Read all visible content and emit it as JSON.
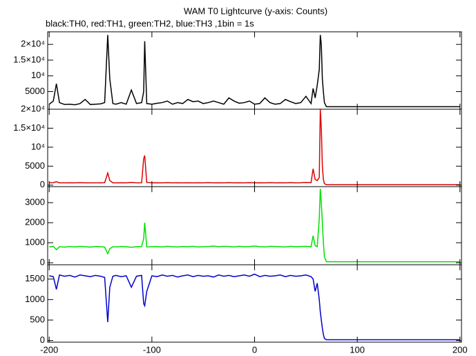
{
  "chart_data": [
    {
      "type": "line",
      "title": "WAM T0 Lightcurve (y-axis: Counts)",
      "subtitle": "black:TH0, red:TH1, green:TH2, blue:TH3 ,1bin = 1s",
      "x": [
        -200,
        -196,
        -193,
        -190,
        -185,
        -180,
        -175,
        -170,
        -165,
        -160,
        -155,
        -150,
        -146,
        -143,
        -141,
        -138,
        -135,
        -130,
        -125,
        -120,
        -115,
        -110,
        -108,
        -107,
        -105,
        -100,
        -95,
        -90,
        -85,
        -80,
        -75,
        -70,
        -65,
        -60,
        -55,
        -50,
        -45,
        -40,
        -35,
        -30,
        -25,
        -20,
        -15,
        -10,
        -5,
        0,
        5,
        10,
        15,
        20,
        25,
        30,
        35,
        40,
        45,
        50,
        55,
        57,
        59,
        61,
        63,
        64,
        65,
        66,
        67,
        68,
        70,
        75,
        80,
        90,
        100,
        110,
        120,
        130,
        140,
        150,
        160,
        170,
        180,
        190,
        200
      ],
      "series": [
        {
          "color": "#000000",
          "values": [
            1000,
            2000,
            7500,
            1500,
            900,
            1000,
            800,
            1200,
            2500,
            900,
            1000,
            1100,
            1500,
            23000,
            9000,
            1200,
            1000,
            1500,
            1000,
            5500,
            1200,
            1500,
            5000,
            21000,
            1200,
            1000,
            1300,
            1500,
            2000,
            1000,
            1500,
            1200,
            2500,
            1800,
            2000,
            1200,
            1500,
            2000,
            1500,
            1000,
            3000,
            2000,
            1300,
            1500,
            2000,
            1000,
            1200,
            3000,
            1500,
            1000,
            1200,
            2500,
            1800,
            1200,
            1500,
            3500,
            1200,
            6000,
            3000,
            7000,
            12000,
            23000,
            20000,
            9000,
            5000,
            1500,
            200,
            200,
            200,
            200,
            200,
            200,
            200,
            200,
            200,
            200,
            200,
            200,
            200,
            200,
            200
          ]
        }
      ],
      "xlim": [
        -201.5,
        201.5
      ],
      "ylim": [
        -600,
        24000
      ],
      "yticks": [
        5000,
        {
          "value": 10000,
          "label": "10⁴"
        },
        {
          "value": 15000,
          "label": "1.5×10⁴"
        },
        {
          "value": 20000,
          "label": "2×10⁴"
        }
      ]
    },
    {
      "type": "line",
      "x": [
        -200,
        -196,
        -193,
        -190,
        -185,
        -180,
        -175,
        -170,
        -165,
        -160,
        -155,
        -150,
        -146,
        -143,
        -141,
        -138,
        -135,
        -130,
        -125,
        -120,
        -115,
        -110,
        -108,
        -107,
        -105,
        -100,
        -95,
        -90,
        -85,
        -80,
        -75,
        -70,
        -65,
        -60,
        -55,
        -50,
        -45,
        -40,
        -35,
        -30,
        -25,
        -20,
        -15,
        -10,
        -5,
        0,
        5,
        10,
        15,
        20,
        25,
        30,
        35,
        40,
        45,
        50,
        55,
        57,
        59,
        61,
        63,
        64,
        65,
        66,
        67,
        68,
        70,
        75,
        80,
        90,
        100,
        110,
        120,
        130,
        140,
        150,
        160,
        170,
        180,
        190,
        200
      ],
      "series": [
        {
          "color": "#dd0000",
          "values": [
            600,
            650,
            900,
            600,
            600,
            620,
            600,
            640,
            600,
            600,
            610,
            600,
            650,
            3200,
            1200,
            600,
            600,
            620,
            600,
            700,
            600,
            620,
            7000,
            7800,
            700,
            600,
            620,
            600,
            640,
            600,
            620,
            600,
            630,
            600,
            620,
            600,
            650,
            600,
            620,
            600,
            640,
            600,
            620,
            600,
            650,
            600,
            620,
            600,
            640,
            600,
            620,
            600,
            650,
            600,
            620,
            700,
            650,
            4300,
            1500,
            1200,
            2000,
            20000,
            15000,
            5000,
            1500,
            400,
            100,
            100,
            100,
            100,
            100,
            100,
            100,
            100,
            100,
            100,
            100,
            100,
            100,
            100,
            100
          ]
        }
      ],
      "xlim": [
        -201.5,
        201.5
      ],
      "ylim": [
        -400,
        20000
      ],
      "yticks": [
        0,
        5000,
        {
          "value": 10000,
          "label": "10⁴"
        },
        {
          "value": 15000,
          "label": "1.5×10⁴"
        },
        {
          "value": 20000,
          "label": "2×10⁴"
        }
      ]
    },
    {
      "type": "line",
      "x": [
        -200,
        -196,
        -193,
        -190,
        -185,
        -180,
        -175,
        -170,
        -165,
        -160,
        -155,
        -150,
        -146,
        -143,
        -141,
        -138,
        -135,
        -130,
        -125,
        -120,
        -115,
        -110,
        -108,
        -107,
        -105,
        -100,
        -95,
        -90,
        -85,
        -80,
        -75,
        -70,
        -65,
        -60,
        -55,
        -50,
        -45,
        -40,
        -35,
        -30,
        -25,
        -20,
        -15,
        -10,
        -5,
        0,
        5,
        10,
        15,
        20,
        25,
        30,
        35,
        40,
        45,
        50,
        55,
        57,
        59,
        61,
        63,
        64,
        65,
        66,
        67,
        68,
        70,
        75,
        80,
        90,
        100,
        110,
        120,
        130,
        140,
        150,
        160,
        170,
        180,
        190,
        200
      ],
      "series": [
        {
          "color": "#00e000",
          "values": [
            790,
            820,
            650,
            800,
            780,
            810,
            790,
            820,
            800,
            780,
            810,
            800,
            780,
            450,
            700,
            800,
            790,
            810,
            800,
            770,
            800,
            810,
            1200,
            2000,
            790,
            800,
            810,
            790,
            820,
            800,
            790,
            810,
            800,
            820,
            790,
            800,
            810,
            830,
            800,
            820,
            810,
            790,
            820,
            800,
            810,
            830,
            800,
            790,
            820,
            810,
            800,
            790,
            820,
            800,
            810,
            820,
            800,
            1350,
            850,
            800,
            2200,
            3700,
            3000,
            2000,
            1000,
            300,
            50,
            50,
            50,
            50,
            50,
            50,
            50,
            50,
            50,
            50,
            50,
            50,
            50,
            50,
            50
          ]
        }
      ],
      "xlim": [
        -201.5,
        201.5
      ],
      "ylim": [
        -100,
        3800
      ],
      "yticks": [
        0,
        1000,
        2000,
        3000
      ]
    },
    {
      "type": "line",
      "x": [
        -200,
        -196,
        -193,
        -190,
        -185,
        -180,
        -175,
        -170,
        -165,
        -160,
        -155,
        -150,
        -146,
        -143,
        -141,
        -138,
        -135,
        -130,
        -125,
        -120,
        -115,
        -110,
        -108,
        -107,
        -105,
        -100,
        -95,
        -90,
        -85,
        -80,
        -75,
        -70,
        -65,
        -60,
        -55,
        -50,
        -45,
        -40,
        -35,
        -30,
        -25,
        -20,
        -15,
        -10,
        -5,
        0,
        5,
        10,
        15,
        20,
        25,
        30,
        35,
        40,
        45,
        50,
        55,
        57,
        59,
        61,
        63,
        64,
        65,
        66,
        67,
        68,
        70,
        75,
        80,
        90,
        100,
        110,
        120,
        130,
        140,
        150,
        160,
        170,
        180,
        190,
        200
      ],
      "series": [
        {
          "color": "#0000cc",
          "values": [
            1580,
            1560,
            1250,
            1600,
            1570,
            1590,
            1550,
            1600,
            1580,
            1560,
            1590,
            1570,
            1540,
            450,
            1300,
            1570,
            1590,
            1560,
            1580,
            1300,
            1570,
            1590,
            900,
            850,
            1200,
            1580,
            1560,
            1600,
            1570,
            1590,
            1550,
            1580,
            1600,
            1560,
            1590,
            1570,
            1580,
            1550,
            1600,
            1570,
            1590,
            1560,
            1580,
            1600,
            1570,
            1620,
            1560,
            1590,
            1570,
            1580,
            1600,
            1560,
            1590,
            1570,
            1580,
            1600,
            1560,
            1500,
            1200,
            1400,
            1000,
            700,
            500,
            300,
            150,
            50,
            20,
            20,
            20,
            20,
            20,
            20,
            20,
            20,
            20,
            20,
            20,
            20,
            20,
            20,
            20
          ]
        }
      ],
      "xlim": [
        -201.5,
        201.5
      ],
      "ylim": [
        -40,
        1850
      ],
      "yticks": [
        0,
        500,
        1000,
        1500
      ],
      "xticks": [
        -200,
        -100,
        0,
        100,
        200
      ]
    }
  ]
}
